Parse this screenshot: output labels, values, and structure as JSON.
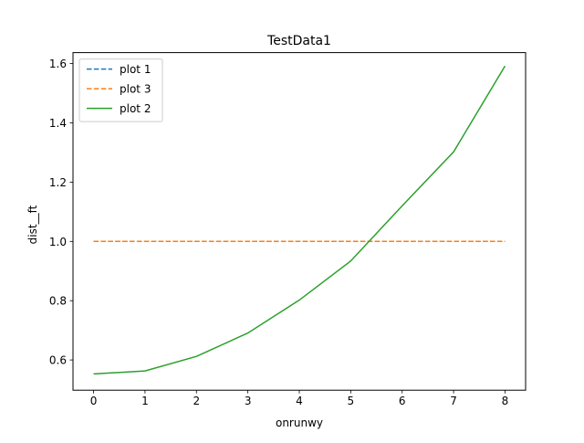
{
  "chart_data": {
    "type": "line",
    "title": "TestData1",
    "xlabel": "onrunwy",
    "ylabel": "dist__ft",
    "xlim": [
      -0.4,
      8.4
    ],
    "ylim": [
      0.498,
      1.637
    ],
    "xticks": [
      "0",
      "1",
      "2",
      "3",
      "4",
      "5",
      "6",
      "7",
      "8"
    ],
    "yticks": [
      "0.6",
      "0.8",
      "1.0",
      "1.2",
      "1.4",
      "1.6"
    ],
    "grid": false,
    "legend_position": "top-left",
    "x": [
      0,
      1,
      2,
      3,
      4,
      5,
      6,
      7,
      8
    ],
    "series": [
      {
        "name": "plot 1",
        "color": "#1f77b4",
        "style": "dashed",
        "values": [
          1.0,
          1.0,
          1.0,
          1.0,
          1.0,
          1.0,
          1.0,
          1.0,
          1.0
        ]
      },
      {
        "name": "plot 3",
        "color": "#ff7f0e",
        "style": "dashed",
        "values": [
          1.0,
          1.0,
          1.0,
          1.0,
          1.0,
          1.0,
          1.0,
          1.0,
          1.0
        ]
      },
      {
        "name": "plot 2",
        "color": "#2ca02c",
        "style": "solid",
        "values": [
          0.553,
          0.563,
          0.612,
          0.691,
          0.802,
          0.934,
          1.12,
          1.302,
          1.592
        ]
      }
    ]
  }
}
